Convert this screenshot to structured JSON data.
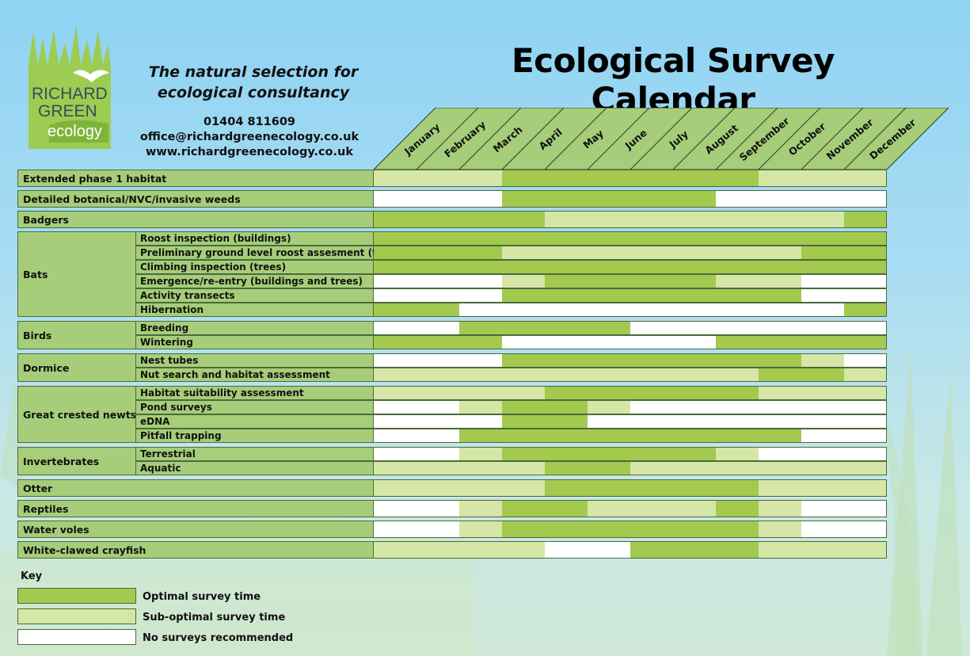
{
  "logo": {
    "line1": "RICHARD",
    "line2": "GREEN",
    "line3": "ecology"
  },
  "tagline": {
    "line1": "The natural selection for",
    "line2": "ecological consultancy"
  },
  "contact": {
    "phone": "01404 811609",
    "email": "office@richardgreenecology.co.uk",
    "web": "www.richardgreenecology.co.uk"
  },
  "title": "Ecological Survey Calendar",
  "months": [
    "January",
    "February",
    "March",
    "April",
    "May",
    "June",
    "July",
    "August",
    "September",
    "October",
    "November",
    "December"
  ],
  "colors": {
    "optimal": "#a3c94f",
    "suboptimal": "#d5e6a6",
    "none": "#ffffff",
    "label": "#a6cd79"
  },
  "rows": [
    {
      "group": "Extended phase 1 habitat",
      "sub": "",
      "segments": [
        [
          "s",
          0,
          3
        ],
        [
          "o",
          3,
          9
        ],
        [
          "s",
          9,
          12
        ]
      ]
    },
    {
      "group": "Detailed botanical/NVC/invasive weeds",
      "sub": "",
      "segments": [
        [
          "n",
          0,
          3
        ],
        [
          "o",
          3,
          8
        ],
        [
          "n",
          8,
          12
        ]
      ]
    },
    {
      "group": "Badgers",
      "sub": "",
      "segments": [
        [
          "o",
          0,
          4
        ],
        [
          "s",
          4,
          11
        ],
        [
          "o",
          11,
          12
        ]
      ]
    },
    {
      "group": "Bats",
      "sub": "Roost inspection (buildings)",
      "segments": [
        [
          "o",
          0,
          12
        ]
      ]
    },
    {
      "group": "Bats",
      "sub": "Preliminary ground level roost assesment (trees)",
      "segments": [
        [
          "o",
          0,
          3
        ],
        [
          "s",
          3,
          10
        ],
        [
          "o",
          10,
          12
        ]
      ]
    },
    {
      "group": "Bats",
      "sub": "Climbing inspection (trees)",
      "segments": [
        [
          "o",
          0,
          12
        ]
      ]
    },
    {
      "group": "Bats",
      "sub": "Emergence/re-entry (buildings and trees)",
      "segments": [
        [
          "n",
          0,
          3
        ],
        [
          "s",
          3,
          4
        ],
        [
          "o",
          4,
          8
        ],
        [
          "s",
          8,
          10
        ],
        [
          "n",
          10,
          12
        ]
      ]
    },
    {
      "group": "Bats",
      "sub": "Activity transects",
      "segments": [
        [
          "n",
          0,
          3
        ],
        [
          "o",
          3,
          10
        ],
        [
          "n",
          10,
          12
        ]
      ]
    },
    {
      "group": "Bats",
      "sub": "Hibernation",
      "segments": [
        [
          "o",
          0,
          2
        ],
        [
          "n",
          2,
          11
        ],
        [
          "o",
          11,
          12
        ]
      ]
    },
    {
      "group": "Birds",
      "sub": "Breeding",
      "segments": [
        [
          "n",
          0,
          2
        ],
        [
          "o",
          2,
          6
        ],
        [
          "n",
          6,
          12
        ]
      ]
    },
    {
      "group": "Birds",
      "sub": "Wintering",
      "segments": [
        [
          "o",
          0,
          3
        ],
        [
          "n",
          3,
          8
        ],
        [
          "o",
          8,
          12
        ]
      ]
    },
    {
      "group": "Dormice",
      "sub": "Nest tubes",
      "segments": [
        [
          "n",
          0,
          3
        ],
        [
          "o",
          3,
          10
        ],
        [
          "s",
          10,
          11
        ],
        [
          "n",
          11,
          12
        ]
      ]
    },
    {
      "group": "Dormice",
      "sub": "Nut search and habitat assessment",
      "segments": [
        [
          "s",
          0,
          9
        ],
        [
          "o",
          9,
          11
        ],
        [
          "s",
          11,
          12
        ]
      ]
    },
    {
      "group": "Great crested newts",
      "sub": "Habitat suitability assessment",
      "segments": [
        [
          "s",
          0,
          4
        ],
        [
          "o",
          4,
          9
        ],
        [
          "s",
          9,
          12
        ]
      ]
    },
    {
      "group": "Great crested newts",
      "sub": "Pond surveys",
      "segments": [
        [
          "n",
          0,
          2
        ],
        [
          "s",
          2,
          3
        ],
        [
          "o",
          3,
          5
        ],
        [
          "s",
          5,
          6
        ],
        [
          "n",
          6,
          12
        ]
      ]
    },
    {
      "group": "Great crested newts",
      "sub": "eDNA",
      "segments": [
        [
          "n",
          0,
          3
        ],
        [
          "o",
          3,
          5
        ],
        [
          "n",
          5,
          12
        ]
      ]
    },
    {
      "group": "Great crested newts",
      "sub": "Pitfall trapping",
      "segments": [
        [
          "n",
          0,
          2
        ],
        [
          "o",
          2,
          10
        ],
        [
          "n",
          10,
          12
        ]
      ]
    },
    {
      "group": "Invertebrates",
      "sub": "Terrestrial",
      "segments": [
        [
          "n",
          0,
          2
        ],
        [
          "s",
          2,
          3
        ],
        [
          "o",
          3,
          8
        ],
        [
          "s",
          8,
          9
        ],
        [
          "n",
          9,
          12
        ]
      ]
    },
    {
      "group": "Invertebrates",
      "sub": "Aquatic",
      "segments": [
        [
          "s",
          0,
          4
        ],
        [
          "o",
          4,
          6
        ],
        [
          "s",
          6,
          12
        ]
      ]
    },
    {
      "group": "Otter",
      "sub": "",
      "segments": [
        [
          "s",
          0,
          4
        ],
        [
          "o",
          4,
          9
        ],
        [
          "s",
          9,
          12
        ]
      ]
    },
    {
      "group": "Reptiles",
      "sub": "",
      "segments": [
        [
          "n",
          0,
          2
        ],
        [
          "s",
          2,
          3
        ],
        [
          "o",
          3,
          5
        ],
        [
          "s",
          5,
          8
        ],
        [
          "o",
          8,
          9
        ],
        [
          "s",
          9,
          10
        ],
        [
          "n",
          10,
          12
        ]
      ]
    },
    {
      "group": "Water voles",
      "sub": "",
      "segments": [
        [
          "n",
          0,
          2
        ],
        [
          "s",
          2,
          3
        ],
        [
          "o",
          3,
          9
        ],
        [
          "s",
          9,
          10
        ],
        [
          "n",
          10,
          12
        ]
      ]
    },
    {
      "group": "White-clawed crayfish",
      "sub": "",
      "segments": [
        [
          "s",
          0,
          4
        ],
        [
          "n",
          4,
          6
        ],
        [
          "o",
          6,
          9
        ],
        [
          "s",
          9,
          12
        ]
      ]
    }
  ],
  "key": {
    "title": "Key",
    "optimal": "Optimal survey time",
    "suboptimal": "Sub-optimal survey time",
    "none": "No surveys recommended"
  }
}
